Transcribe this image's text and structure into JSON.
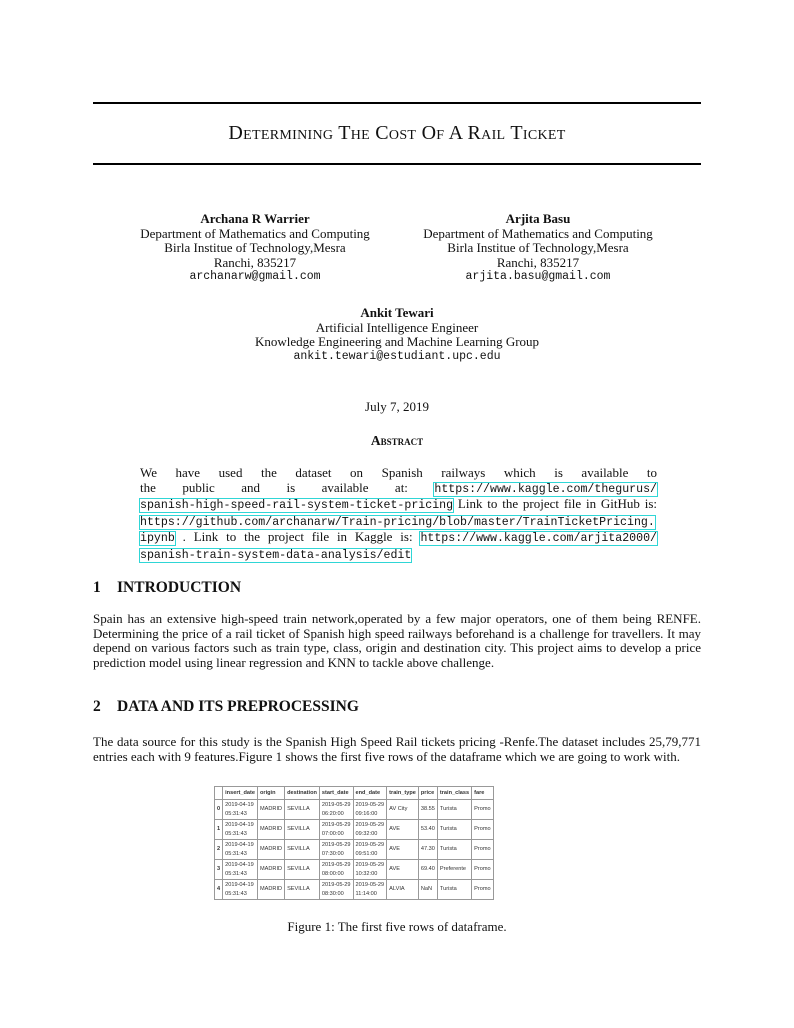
{
  "title": "Determining The Cost Of A Rail Ticket",
  "authors": [
    {
      "name": "Archana R Warrier",
      "lines": [
        "Department of Mathematics and Computing",
        "Birla Institue of Technology,Mesra",
        "Ranchi, 835217"
      ],
      "email": "archanarw@gmail.com"
    },
    {
      "name": "Arjita Basu",
      "lines": [
        "Department of Mathematics and Computing",
        "Birla Institue of Technology,Mesra",
        "Ranchi, 835217"
      ],
      "email": "arjita.basu@gmail.com"
    },
    {
      "name": "Ankit Tewari",
      "lines": [
        "Artificial Intelligence Engineer",
        "Knowledge Engineering and Machine Learning Group"
      ],
      "email": "ankit.tewari@estudiant.upc.edu"
    }
  ],
  "date": "July 7, 2019",
  "abstract": {
    "heading": "Abstract",
    "line1": "We have used the dataset on Spanish railways which is available to",
    "line2": "the public and is available at:",
    "link1a": "https://www.kaggle.com/thegurus/",
    "link1b": "spanish-high-speed-rail-system-ticket-pricing",
    "text3": " Link to the project file in GitHub is:",
    "link2a": "https://github.com/archanarw/Train-pricing/blob/master/TrainTicketPricing.",
    "link2b": "ipynb",
    "text5": " .  Link to the project file in Kaggle is: ",
    "link3a": "https://www.kaggle.com/arjita2000/",
    "link3b": "spanish-train-system-data-analysis/edit"
  },
  "sections": [
    {
      "num": "1",
      "title": "INTRODUCTION",
      "text": "Spain has an extensive high-speed train network,operated by a few major operators, one of them being RENFE. Determining the price of a rail ticket of Spanish high speed railways beforehand is a challenge for travellers. It may depend on various factors such as train type, class, origin and destination city. This project aims to develop a price prediction model using linear regression and KNN to tackle above challenge."
    },
    {
      "num": "2",
      "title": "DATA AND ITS PREPROCESSING",
      "text": "The data source for this study is the Spanish High Speed Rail tickets pricing -Renfe.The dataset includes 25,79,771 entries each with 9 features.Figure 1 shows the first five rows of the dataframe which we are going to work with."
    }
  ],
  "table": {
    "columns": [
      "",
      "insert_date",
      "origin",
      "destination",
      "start_date",
      "end_date",
      "train_type",
      "price",
      "train_class",
      "fare"
    ],
    "rows": [
      [
        "0",
        "2019-04-19\n05:31:43",
        "MADRID",
        "SEVILLA",
        "2019-05-29\n06:20:00",
        "2019-05-29\n09:16:00",
        "AV City",
        "38.55",
        "Turista",
        "Promo"
      ],
      [
        "1",
        "2019-04-19\n05:31:43",
        "MADRID",
        "SEVILLA",
        "2019-05-29\n07:00:00",
        "2019-05-29\n09:32:00",
        "AVE",
        "53.40",
        "Turista",
        "Promo"
      ],
      [
        "2",
        "2019-04-19\n05:31:43",
        "MADRID",
        "SEVILLA",
        "2019-05-29\n07:30:00",
        "2019-05-29\n09:51:00",
        "AVE",
        "47.30",
        "Turista",
        "Promo"
      ],
      [
        "3",
        "2019-04-19\n05:31:43",
        "MADRID",
        "SEVILLA",
        "2019-05-29\n08:00:00",
        "2019-05-29\n10:32:00",
        "AVE",
        "69.40",
        "Preferente",
        "Promo"
      ],
      [
        "4",
        "2019-04-19\n05:31:43",
        "MADRID",
        "SEVILLA",
        "2019-05-29\n08:30:00",
        "2019-05-29\n11:14:00",
        "ALVIA",
        "NaN",
        "Turista",
        "Promo"
      ]
    ]
  },
  "caption": "Figure 1: The first five rows of dataframe."
}
